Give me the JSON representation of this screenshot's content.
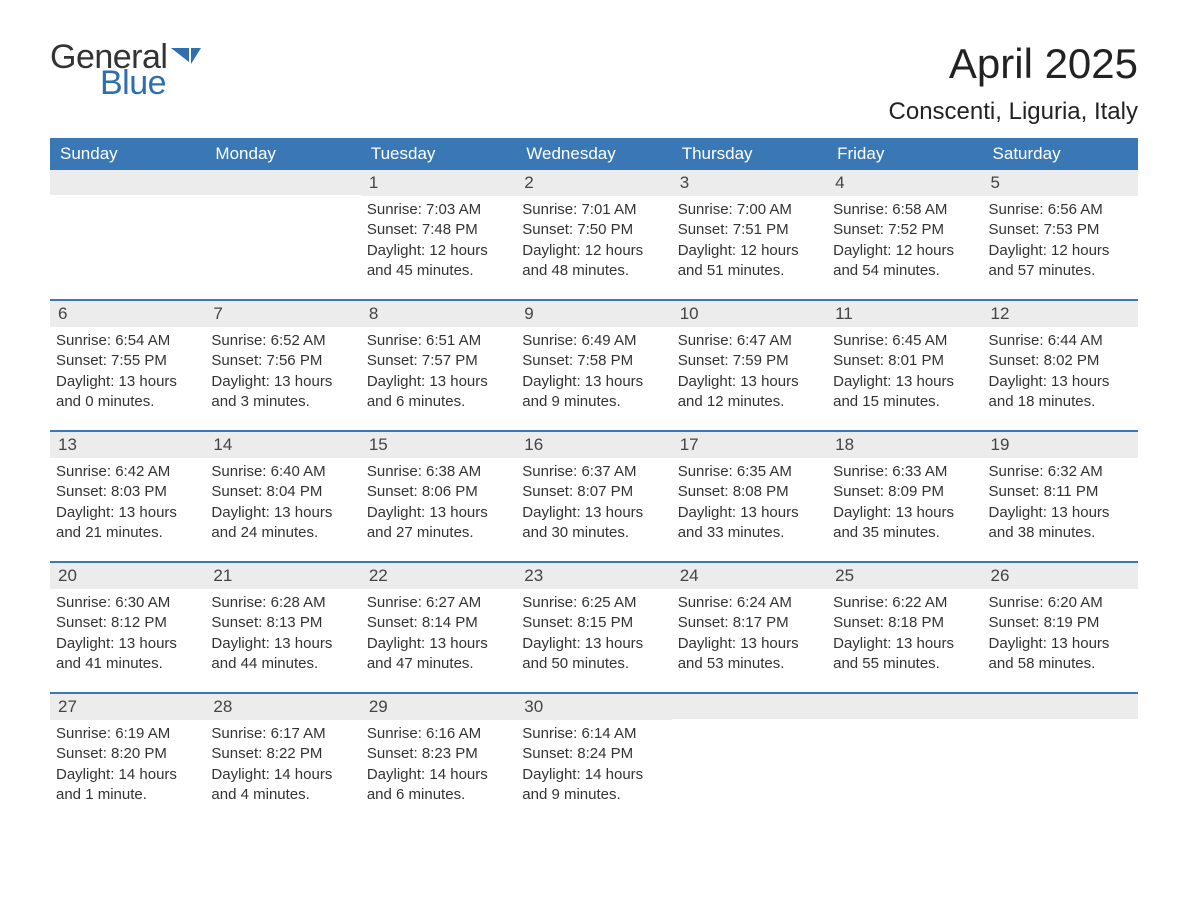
{
  "brand": {
    "word1": "General",
    "word2": "Blue",
    "color": "#2f6fb0"
  },
  "title": "April 2025",
  "location": "Conscenti, Liguria, Italy",
  "colors": {
    "header_bg": "#3a78b5",
    "header_text": "#ffffff",
    "daynum_bg": "#ececec",
    "week_divider": "#3a78b5",
    "body_text": "#333333",
    "page_bg": "#ffffff"
  },
  "typography": {
    "title_fontsize": 42,
    "location_fontsize": 24,
    "header_fontsize": 17,
    "daynum_fontsize": 17,
    "body_fontsize": 15,
    "font_family": "Arial"
  },
  "columns": [
    "Sunday",
    "Monday",
    "Tuesday",
    "Wednesday",
    "Thursday",
    "Friday",
    "Saturday"
  ],
  "weeks": [
    [
      {
        "num": "",
        "sunrise": "",
        "sunset": "",
        "daylight": ""
      },
      {
        "num": "",
        "sunrise": "",
        "sunset": "",
        "daylight": ""
      },
      {
        "num": "1",
        "sunrise": "Sunrise: 7:03 AM",
        "sunset": "Sunset: 7:48 PM",
        "daylight": "Daylight: 12 hours and 45 minutes."
      },
      {
        "num": "2",
        "sunrise": "Sunrise: 7:01 AM",
        "sunset": "Sunset: 7:50 PM",
        "daylight": "Daylight: 12 hours and 48 minutes."
      },
      {
        "num": "3",
        "sunrise": "Sunrise: 7:00 AM",
        "sunset": "Sunset: 7:51 PM",
        "daylight": "Daylight: 12 hours and 51 minutes."
      },
      {
        "num": "4",
        "sunrise": "Sunrise: 6:58 AM",
        "sunset": "Sunset: 7:52 PM",
        "daylight": "Daylight: 12 hours and 54 minutes."
      },
      {
        "num": "5",
        "sunrise": "Sunrise: 6:56 AM",
        "sunset": "Sunset: 7:53 PM",
        "daylight": "Daylight: 12 hours and 57 minutes."
      }
    ],
    [
      {
        "num": "6",
        "sunrise": "Sunrise: 6:54 AM",
        "sunset": "Sunset: 7:55 PM",
        "daylight": "Daylight: 13 hours and 0 minutes."
      },
      {
        "num": "7",
        "sunrise": "Sunrise: 6:52 AM",
        "sunset": "Sunset: 7:56 PM",
        "daylight": "Daylight: 13 hours and 3 minutes."
      },
      {
        "num": "8",
        "sunrise": "Sunrise: 6:51 AM",
        "sunset": "Sunset: 7:57 PM",
        "daylight": "Daylight: 13 hours and 6 minutes."
      },
      {
        "num": "9",
        "sunrise": "Sunrise: 6:49 AM",
        "sunset": "Sunset: 7:58 PM",
        "daylight": "Daylight: 13 hours and 9 minutes."
      },
      {
        "num": "10",
        "sunrise": "Sunrise: 6:47 AM",
        "sunset": "Sunset: 7:59 PM",
        "daylight": "Daylight: 13 hours and 12 minutes."
      },
      {
        "num": "11",
        "sunrise": "Sunrise: 6:45 AM",
        "sunset": "Sunset: 8:01 PM",
        "daylight": "Daylight: 13 hours and 15 minutes."
      },
      {
        "num": "12",
        "sunrise": "Sunrise: 6:44 AM",
        "sunset": "Sunset: 8:02 PM",
        "daylight": "Daylight: 13 hours and 18 minutes."
      }
    ],
    [
      {
        "num": "13",
        "sunrise": "Sunrise: 6:42 AM",
        "sunset": "Sunset: 8:03 PM",
        "daylight": "Daylight: 13 hours and 21 minutes."
      },
      {
        "num": "14",
        "sunrise": "Sunrise: 6:40 AM",
        "sunset": "Sunset: 8:04 PM",
        "daylight": "Daylight: 13 hours and 24 minutes."
      },
      {
        "num": "15",
        "sunrise": "Sunrise: 6:38 AM",
        "sunset": "Sunset: 8:06 PM",
        "daylight": "Daylight: 13 hours and 27 minutes."
      },
      {
        "num": "16",
        "sunrise": "Sunrise: 6:37 AM",
        "sunset": "Sunset: 8:07 PM",
        "daylight": "Daylight: 13 hours and 30 minutes."
      },
      {
        "num": "17",
        "sunrise": "Sunrise: 6:35 AM",
        "sunset": "Sunset: 8:08 PM",
        "daylight": "Daylight: 13 hours and 33 minutes."
      },
      {
        "num": "18",
        "sunrise": "Sunrise: 6:33 AM",
        "sunset": "Sunset: 8:09 PM",
        "daylight": "Daylight: 13 hours and 35 minutes."
      },
      {
        "num": "19",
        "sunrise": "Sunrise: 6:32 AM",
        "sunset": "Sunset: 8:11 PM",
        "daylight": "Daylight: 13 hours and 38 minutes."
      }
    ],
    [
      {
        "num": "20",
        "sunrise": "Sunrise: 6:30 AM",
        "sunset": "Sunset: 8:12 PM",
        "daylight": "Daylight: 13 hours and 41 minutes."
      },
      {
        "num": "21",
        "sunrise": "Sunrise: 6:28 AM",
        "sunset": "Sunset: 8:13 PM",
        "daylight": "Daylight: 13 hours and 44 minutes."
      },
      {
        "num": "22",
        "sunrise": "Sunrise: 6:27 AM",
        "sunset": "Sunset: 8:14 PM",
        "daylight": "Daylight: 13 hours and 47 minutes."
      },
      {
        "num": "23",
        "sunrise": "Sunrise: 6:25 AM",
        "sunset": "Sunset: 8:15 PM",
        "daylight": "Daylight: 13 hours and 50 minutes."
      },
      {
        "num": "24",
        "sunrise": "Sunrise: 6:24 AM",
        "sunset": "Sunset: 8:17 PM",
        "daylight": "Daylight: 13 hours and 53 minutes."
      },
      {
        "num": "25",
        "sunrise": "Sunrise: 6:22 AM",
        "sunset": "Sunset: 8:18 PM",
        "daylight": "Daylight: 13 hours and 55 minutes."
      },
      {
        "num": "26",
        "sunrise": "Sunrise: 6:20 AM",
        "sunset": "Sunset: 8:19 PM",
        "daylight": "Daylight: 13 hours and 58 minutes."
      }
    ],
    [
      {
        "num": "27",
        "sunrise": "Sunrise: 6:19 AM",
        "sunset": "Sunset: 8:20 PM",
        "daylight": "Daylight: 14 hours and 1 minute."
      },
      {
        "num": "28",
        "sunrise": "Sunrise: 6:17 AM",
        "sunset": "Sunset: 8:22 PM",
        "daylight": "Daylight: 14 hours and 4 minutes."
      },
      {
        "num": "29",
        "sunrise": "Sunrise: 6:16 AM",
        "sunset": "Sunset: 8:23 PM",
        "daylight": "Daylight: 14 hours and 6 minutes."
      },
      {
        "num": "30",
        "sunrise": "Sunrise: 6:14 AM",
        "sunset": "Sunset: 8:24 PM",
        "daylight": "Daylight: 14 hours and 9 minutes."
      },
      {
        "num": "",
        "sunrise": "",
        "sunset": "",
        "daylight": ""
      },
      {
        "num": "",
        "sunrise": "",
        "sunset": "",
        "daylight": ""
      },
      {
        "num": "",
        "sunrise": "",
        "sunset": "",
        "daylight": ""
      }
    ]
  ]
}
